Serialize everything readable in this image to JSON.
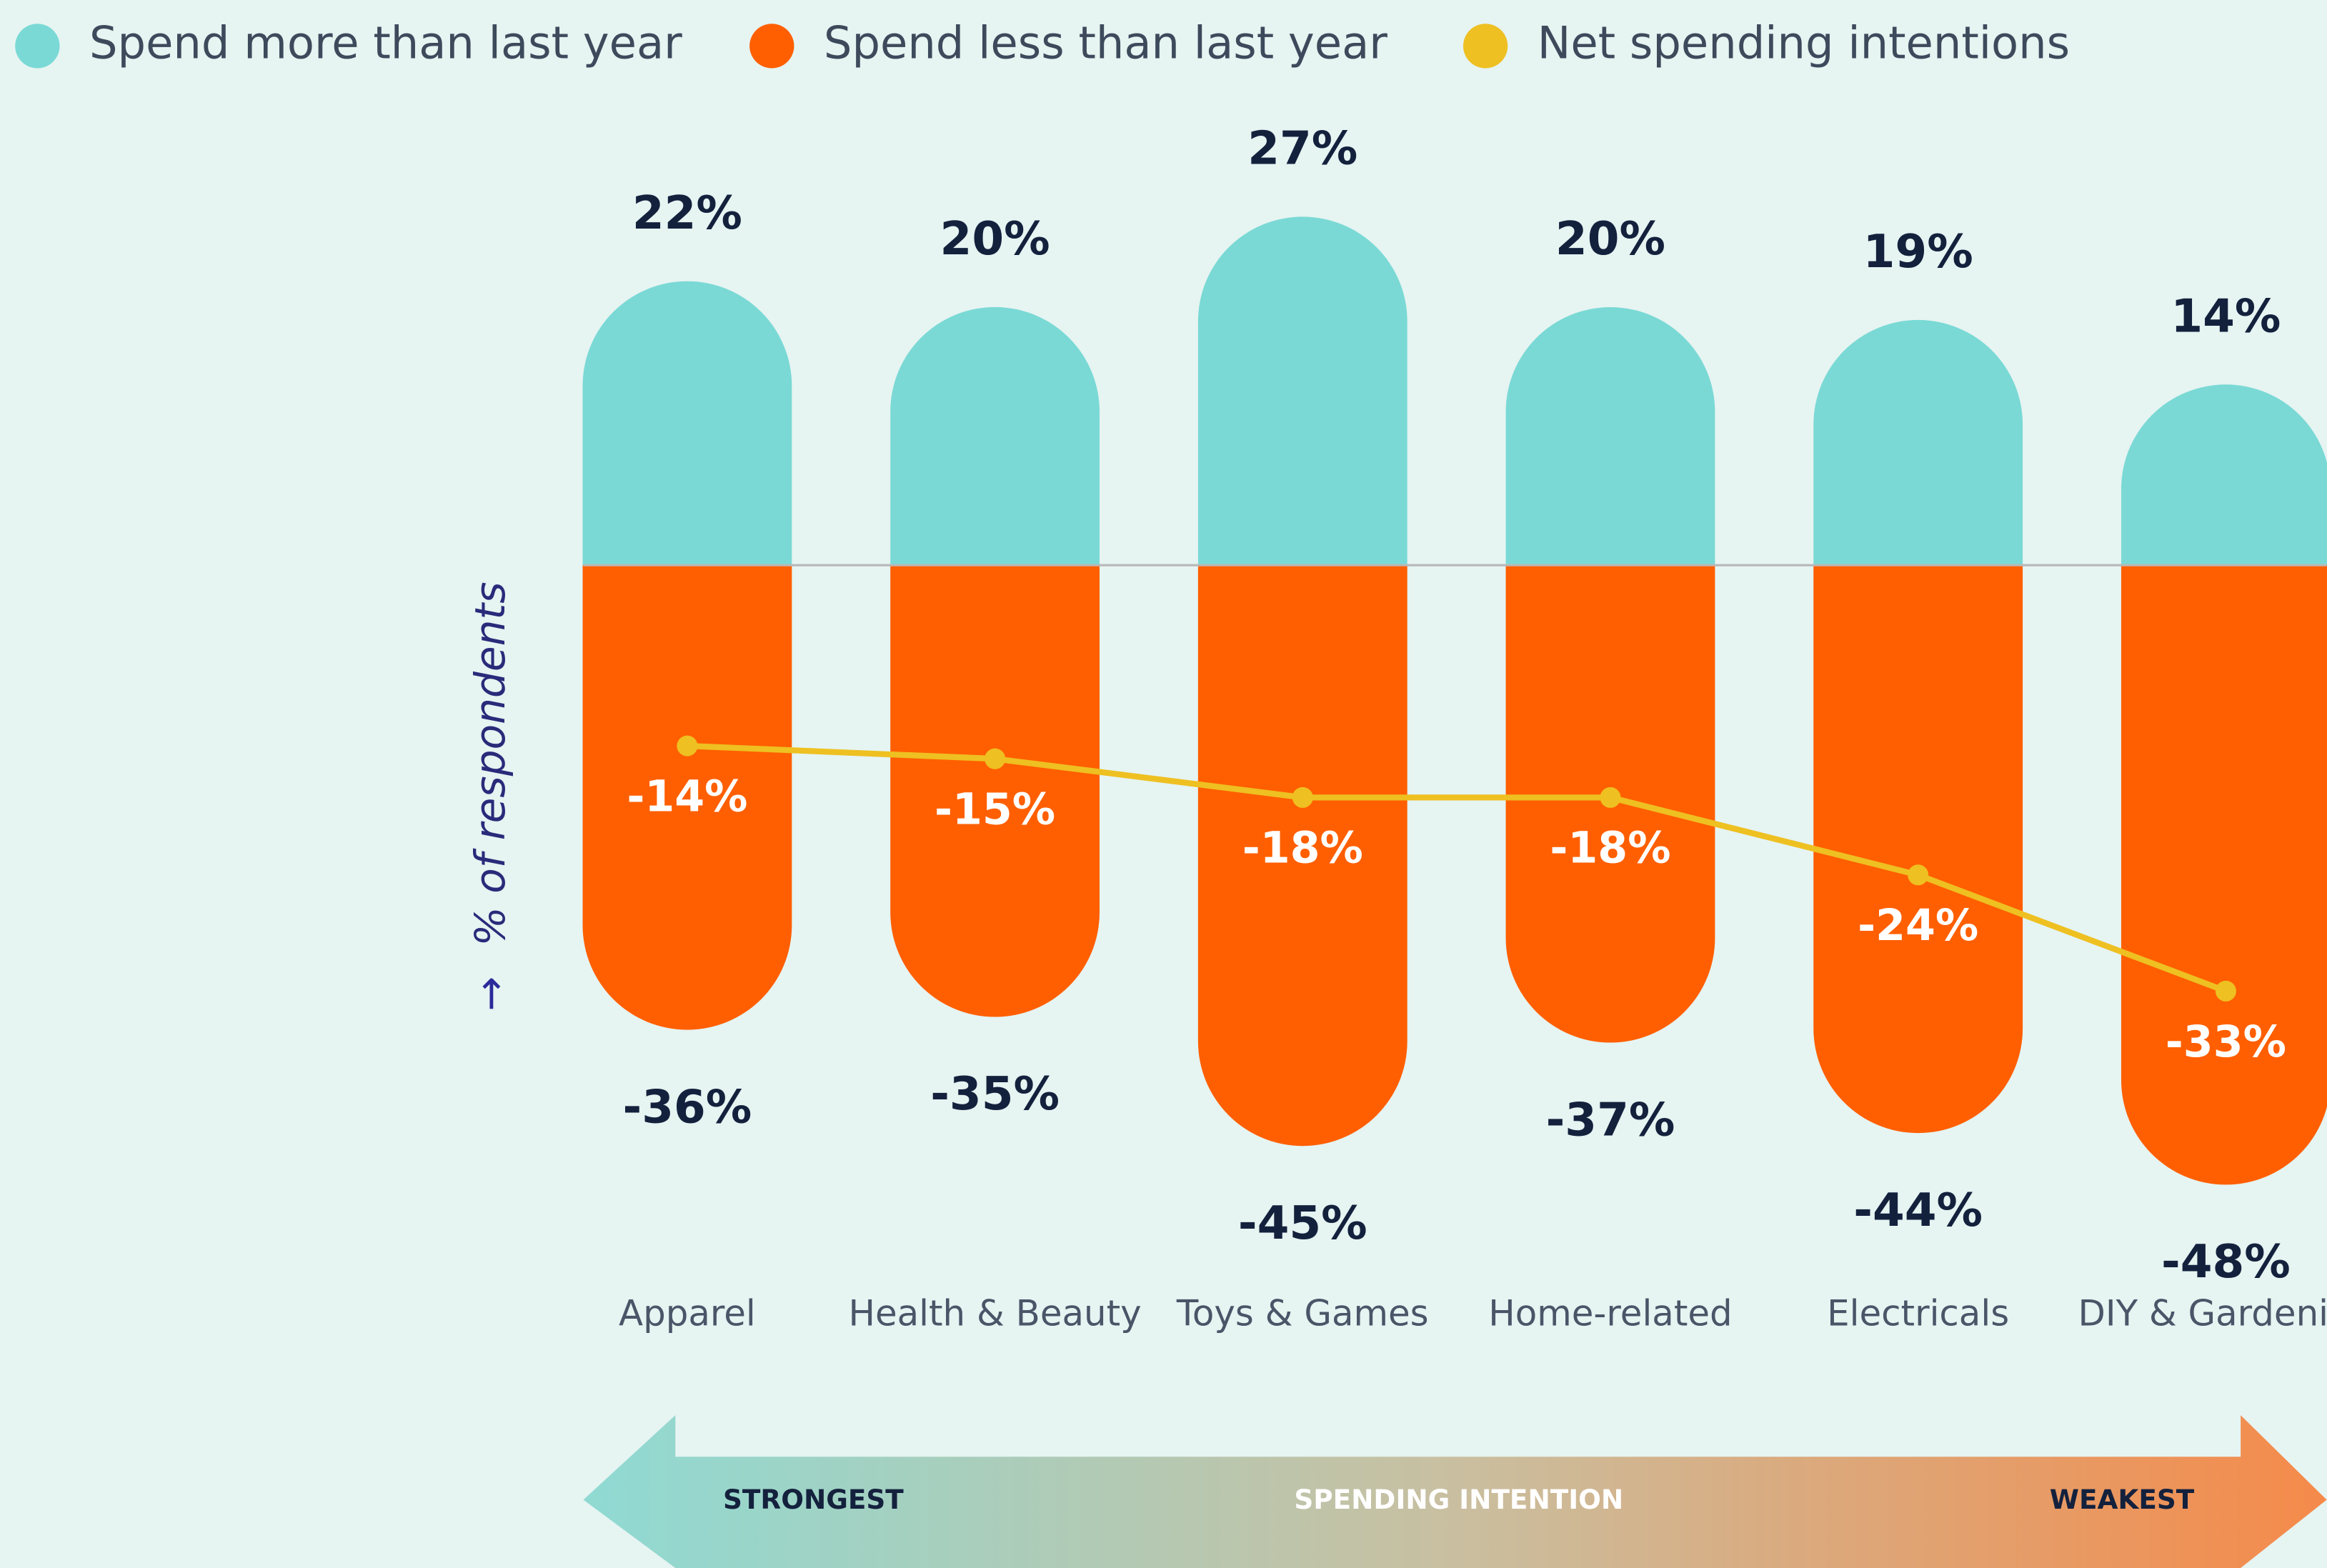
{
  "chart_data": {
    "type": "diverging-bar",
    "categories": [
      "Apparel",
      "Health & Beauty",
      "Toys & Games",
      "Home-related",
      "Electricals",
      "DIY & Gardening"
    ],
    "series": [
      {
        "name": "Spend more than last year",
        "color": "#7ad9d5",
        "values": [
          22,
          20,
          27,
          20,
          19,
          14
        ],
        "value_labels": [
          "22%",
          "20%",
          "27%",
          "20%",
          "19%",
          "14%"
        ]
      },
      {
        "name": "Spend less than last year",
        "color": "#ff5f00",
        "values": [
          -36,
          -35,
          -45,
          -37,
          -44,
          -48
        ],
        "value_labels": [
          "-36%",
          "-35%",
          "-45%",
          "-37%",
          "-44%",
          "-48%"
        ]
      },
      {
        "name": "Net spending intentions",
        "color": "#eec021",
        "values": [
          -14,
          -15,
          -18,
          -18,
          -24,
          -33
        ],
        "value_labels": [
          "-14%",
          "-15%",
          "-18%",
          "-18%",
          "-24%",
          "-33%"
        ]
      }
    ],
    "y_label": "% of respondents",
    "ylim": [
      -50,
      30
    ],
    "annotations": [
      "STRONGEST",
      "SPENDING INTENTION",
      "WEAKEST"
    ]
  }
}
